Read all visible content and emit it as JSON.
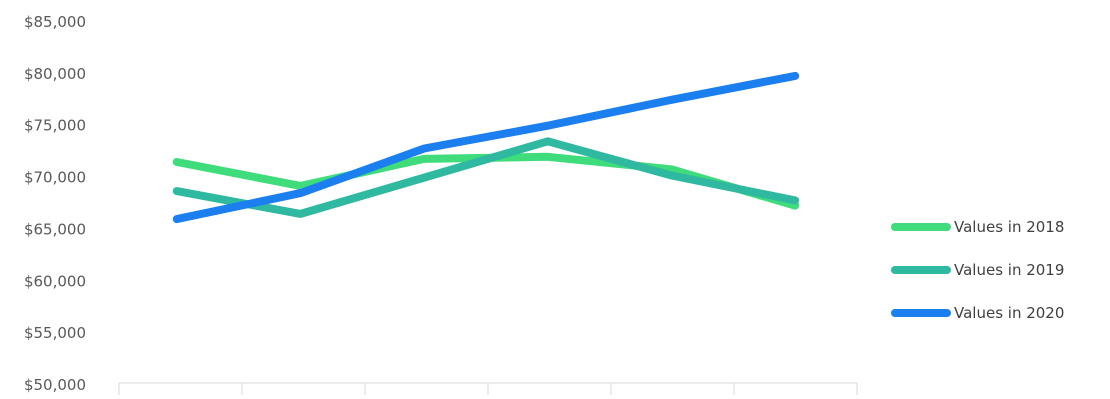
{
  "chart_data": {
    "type": "line",
    "categories": [
      "",
      "",
      "",
      "",
      "",
      ""
    ],
    "series": [
      {
        "name": "Values in 2018",
        "color": "#3fdc7c",
        "values": [
          71500,
          69200,
          71800,
          72000,
          70800,
          67300
        ]
      },
      {
        "name": "Values in 2019",
        "color": "#2fb9a0",
        "values": [
          68700,
          66500,
          70000,
          73500,
          70200,
          67800
        ]
      },
      {
        "name": "Values in 2020",
        "color": "#1c7ff0",
        "values": [
          66000,
          68500,
          72800,
          75000,
          77500,
          79800
        ]
      }
    ],
    "y_ticks": [
      "$50,000",
      "$55,000",
      "$60,000",
      "$65,000",
      "$70,000",
      "$75,000",
      "$80,000",
      "$85,000"
    ],
    "ylim": [
      50000,
      85000
    ],
    "grid": false,
    "legend_position": "right",
    "title": "",
    "xlabel": "",
    "ylabel": ""
  }
}
